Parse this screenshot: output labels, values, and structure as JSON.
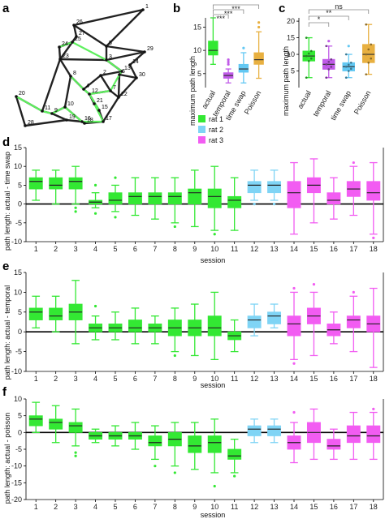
{
  "panel_labels": {
    "a": "a",
    "b": "b",
    "c": "c",
    "d": "d",
    "e": "e",
    "f": "f"
  },
  "colors": {
    "rat1": "#33e833",
    "rat2": "#7fd4f5",
    "rat3": "#f25cf2",
    "actual": "#33e833",
    "temporal": "#c05ae8",
    "time_swap": "#63c8f3",
    "poisson": "#e8b040",
    "network_edge": "#222222",
    "network_highlight": "#5ef05e"
  },
  "network": {
    "node_labels": [
      "1",
      "2",
      "3",
      "4",
      "5",
      "6",
      "7",
      "8",
      "9",
      "10",
      "11",
      "12",
      "13",
      "14",
      "15",
      "16",
      "17",
      "18",
      "19",
      "20",
      "21",
      "22",
      "23",
      "24",
      "25",
      "26",
      "27",
      "28",
      "29",
      "30"
    ]
  },
  "panel_b": {
    "ylabel": "maximum path length",
    "sig": [
      "***",
      "***",
      "***"
    ]
  },
  "panel_c": {
    "ylabel": "maximum path length",
    "sig": [
      "*",
      "**",
      "ns"
    ]
  },
  "legend": {
    "rat1": "rat 1",
    "rat2": "rat 2",
    "rat3": "rat 3"
  },
  "panel_d": {
    "ylabel": "path length: actual - time swap",
    "xlabel": "session"
  },
  "panel_e": {
    "ylabel": "path length: actual - temporal",
    "xlabel": "session"
  },
  "panel_f": {
    "ylabel": "path length: actual - poisson",
    "xlabel": "session"
  },
  "chart_data": [
    {
      "type": "box",
      "panel": "b",
      "categories": [
        "actual",
        "temporal",
        "time swap",
        "Poisson"
      ],
      "ylabel": "maximum path length",
      "ylim": [
        2,
        17
      ],
      "yticks": [
        5,
        10,
        15
      ],
      "boxes": [
        {
          "whislo": 7,
          "q1": 9,
          "med": 10,
          "q3": 12,
          "whishi": 17,
          "fliers": []
        },
        {
          "whislo": 3,
          "q1": 4,
          "med": 4.6,
          "q3": 5.2,
          "whishi": 6,
          "fliers": [
            7,
            7.5,
            8
          ]
        },
        {
          "whislo": 3,
          "q1": 5.3,
          "med": 6,
          "q3": 7,
          "whishi": 9.5,
          "fliers": [
            10.5
          ]
        },
        {
          "whislo": 4,
          "q1": 7,
          "med": 8,
          "q3": 9.5,
          "whishi": 14,
          "fliers": [
            15,
            16
          ]
        }
      ],
      "sig": [
        "***",
        "***",
        "***"
      ]
    },
    {
      "type": "box",
      "panel": "c",
      "categories": [
        "actual",
        "temporal",
        "time swap",
        "Poisson"
      ],
      "ylabel": "maximum path length",
      "ylim": [
        0,
        21
      ],
      "yticks": [
        5,
        10,
        15,
        20
      ],
      "boxes": [
        {
          "whislo": 3,
          "q1": 8,
          "med": 9.5,
          "q3": 11,
          "whishi": 15,
          "fliers": []
        },
        {
          "whislo": 3,
          "q1": 5.5,
          "med": 7,
          "q3": 8.5,
          "whishi": 12.5,
          "fliers": [
            14
          ]
        },
        {
          "whislo": 3,
          "q1": 5,
          "med": 6.3,
          "q3": 7.5,
          "whishi": 10,
          "fliers": [
            12.5
          ]
        },
        {
          "whislo": 4,
          "q1": 7.5,
          "med": 10,
          "q3": 13,
          "whishi": 19,
          "fliers": []
        }
      ],
      "sig": [
        "*",
        "**",
        "ns"
      ]
    },
    {
      "type": "box",
      "panel": "d",
      "xlabel": "session",
      "ylabel": "path length: actual - time swap",
      "categories": [
        "1",
        "2",
        "3",
        "4",
        "5",
        "6",
        "7",
        "8",
        "9",
        "10",
        "11",
        "12",
        "13",
        "14",
        "15",
        "16",
        "17",
        "18"
      ],
      "ylim": [
        -10,
        15
      ],
      "yticks": [
        -10,
        -5,
        0,
        5,
        10,
        15
      ],
      "rat": [
        1,
        1,
        1,
        1,
        1,
        1,
        1,
        1,
        1,
        1,
        1,
        2,
        2,
        3,
        3,
        3,
        3,
        3
      ],
      "boxes": [
        {
          "whislo": 1,
          "q1": 4,
          "med": 6,
          "q3": 7,
          "whishi": 9,
          "fliers": []
        },
        {
          "whislo": 0,
          "q1": 4,
          "med": 5,
          "q3": 7,
          "whishi": 9,
          "fliers": []
        },
        {
          "whislo": 0,
          "q1": 4,
          "med": 6,
          "q3": 7,
          "whishi": 10,
          "fliers": [
            -1,
            -2
          ]
        },
        {
          "whislo": -1,
          "q1": 0,
          "med": 0.5,
          "q3": 1,
          "whishi": 3,
          "fliers": [
            5,
            -2.5
          ]
        },
        {
          "whislo": -2,
          "q1": 0,
          "med": 1,
          "q3": 3,
          "whishi": 5,
          "fliers": [
            7,
            -3.5
          ]
        },
        {
          "whislo": -3,
          "q1": 0,
          "med": 2,
          "q3": 3,
          "whishi": 7,
          "fliers": []
        },
        {
          "whislo": -4,
          "q1": 0,
          "med": 2,
          "q3": 3,
          "whishi": 7,
          "fliers": []
        },
        {
          "whislo": -5,
          "q1": 0,
          "med": 2,
          "q3": 3,
          "whishi": 7,
          "fliers": [
            -6
          ]
        },
        {
          "whislo": -6,
          "q1": 0,
          "med": 3,
          "q3": 4,
          "whishi": 9,
          "fliers": []
        },
        {
          "whislo": -7,
          "q1": -1,
          "med": 2,
          "q3": 4,
          "whishi": 10,
          "fliers": [
            -8
          ]
        },
        {
          "whislo": -7,
          "q1": -1,
          "med": 1,
          "q3": 2,
          "whishi": 7,
          "fliers": []
        },
        {
          "whislo": 1,
          "q1": 3,
          "med": 5,
          "q3": 6,
          "whishi": 9,
          "fliers": [
            0
          ]
        },
        {
          "whislo": 1,
          "q1": 3,
          "med": 5,
          "q3": 6,
          "whishi": 9,
          "fliers": [
            0
          ]
        },
        {
          "whislo": -8,
          "q1": -1,
          "med": 3,
          "q3": 6,
          "whishi": 11,
          "fliers": []
        },
        {
          "whislo": -5,
          "q1": 3,
          "med": 5,
          "q3": 7,
          "whishi": 12,
          "fliers": []
        },
        {
          "whislo": -4,
          "q1": 0,
          "med": 1,
          "q3": 3,
          "whishi": 7,
          "fliers": []
        },
        {
          "whislo": -3,
          "q1": 2,
          "med": 4,
          "q3": 6,
          "whishi": 10,
          "fliers": [
            11
          ]
        },
        {
          "whislo": -8,
          "q1": 1,
          "med": 3,
          "q3": 6,
          "whishi": 11,
          "fliers": [
            -9
          ]
        }
      ]
    },
    {
      "type": "box",
      "panel": "e",
      "xlabel": "session",
      "ylabel": "path length: actual - temporal",
      "categories": [
        "1",
        "2",
        "3",
        "4",
        "5",
        "6",
        "7",
        "8",
        "9",
        "10",
        "11",
        "12",
        "13",
        "14",
        "15",
        "16",
        "17",
        "18"
      ],
      "ylim": [
        -10,
        15
      ],
      "yticks": [
        -10,
        -5,
        0,
        5,
        10,
        15
      ],
      "rat": [
        1,
        1,
        1,
        1,
        1,
        1,
        1,
        1,
        1,
        1,
        1,
        2,
        2,
        3,
        3,
        3,
        3,
        3
      ],
      "boxes": [
        {
          "whislo": 1,
          "q1": 3,
          "med": 5,
          "q3": 6,
          "whishi": 9,
          "fliers": []
        },
        {
          "whislo": 0,
          "q1": 3,
          "med": 4,
          "q3": 6,
          "whishi": 9,
          "fliers": []
        },
        {
          "whislo": -3,
          "q1": 3,
          "med": 5,
          "q3": 7,
          "whishi": 13,
          "fliers": []
        },
        {
          "whislo": -2,
          "q1": 0,
          "med": 1,
          "q3": 2,
          "whishi": 4,
          "fliers": [
            6.5
          ]
        },
        {
          "whislo": -2,
          "q1": 0,
          "med": 1,
          "q3": 2,
          "whishi": 5,
          "fliers": []
        },
        {
          "whislo": -3,
          "q1": 0,
          "med": 1,
          "q3": 3,
          "whishi": 6,
          "fliers": []
        },
        {
          "whislo": -3,
          "q1": 0,
          "med": 1,
          "q3": 2,
          "whishi": 4,
          "fliers": []
        },
        {
          "whislo": -5,
          "q1": -1,
          "med": 1,
          "q3": 3,
          "whishi": 6,
          "fliers": [
            -6
          ]
        },
        {
          "whislo": -6,
          "q1": -1,
          "med": 1,
          "q3": 3,
          "whishi": 7,
          "fliers": []
        },
        {
          "whislo": -7,
          "q1": -1,
          "med": 1,
          "q3": 4,
          "whishi": 10,
          "fliers": []
        },
        {
          "whislo": -5,
          "q1": -2,
          "med": -1,
          "q3": 0,
          "whishi": 3,
          "fliers": []
        },
        {
          "whislo": -1,
          "q1": 1,
          "med": 3,
          "q3": 4,
          "whishi": 7,
          "fliers": []
        },
        {
          "whislo": 1,
          "q1": 2,
          "med": 4,
          "q3": 5,
          "whishi": 7,
          "fliers": []
        },
        {
          "whislo": -7,
          "q1": -1,
          "med": 2,
          "q3": 4,
          "whishi": 10,
          "fliers": [
            11,
            -8
          ]
        },
        {
          "whislo": -6,
          "q1": 2,
          "med": 4,
          "q3": 6,
          "whishi": 10,
          "fliers": [
            12
          ]
        },
        {
          "whislo": -3,
          "q1": -1,
          "med": 0.5,
          "q3": 2,
          "whishi": 5,
          "fliers": []
        },
        {
          "whislo": -5,
          "q1": 1,
          "med": 3,
          "q3": 4,
          "whishi": 9,
          "fliers": [
            10
          ]
        },
        {
          "whislo": -9,
          "q1": 0,
          "med": 2,
          "q3": 4,
          "whishi": 11,
          "fliers": []
        }
      ]
    },
    {
      "type": "box",
      "panel": "f",
      "xlabel": "session",
      "ylabel": "path length: actual - poisson",
      "categories": [
        "1",
        "2",
        "3",
        "4",
        "5",
        "6",
        "7",
        "8",
        "9",
        "10",
        "11",
        "12",
        "13",
        "14",
        "15",
        "16",
        "17",
        "18"
      ],
      "ylim": [
        -20,
        10
      ],
      "yticks": [
        -20,
        -15,
        -10,
        -5,
        0,
        5,
        10
      ],
      "rat": [
        1,
        1,
        1,
        1,
        1,
        1,
        1,
        1,
        1,
        1,
        1,
        2,
        2,
        3,
        3,
        3,
        3,
        3
      ],
      "boxes": [
        {
          "whislo": 0,
          "q1": 2,
          "med": 4,
          "q3": 5,
          "whishi": 9,
          "fliers": []
        },
        {
          "whislo": -3,
          "q1": 1,
          "med": 3,
          "q3": 4,
          "whishi": 8,
          "fliers": []
        },
        {
          "whislo": -4,
          "q1": 0,
          "med": 2,
          "q3": 3,
          "whishi": 7,
          "fliers": [
            -6,
            -7
          ]
        },
        {
          "whislo": -3,
          "q1": -2,
          "med": -1,
          "q3": 0,
          "whishi": 1,
          "fliers": []
        },
        {
          "whislo": -4,
          "q1": -2,
          "med": -1,
          "q3": 0,
          "whishi": 2,
          "fliers": []
        },
        {
          "whislo": -5,
          "q1": -2,
          "med": -1,
          "q3": 0,
          "whishi": 3,
          "fliers": []
        },
        {
          "whislo": -8,
          "q1": -4,
          "med": -3,
          "q3": -1,
          "whishi": 2,
          "fliers": [
            -10
          ]
        },
        {
          "whislo": -10,
          "q1": -4,
          "med": -2,
          "q3": 0,
          "whishi": 3,
          "fliers": [
            -12
          ]
        },
        {
          "whislo": -11,
          "q1": -6,
          "med": -4,
          "q3": -1,
          "whishi": 3,
          "fliers": []
        },
        {
          "whislo": -12,
          "q1": -6,
          "med": -3,
          "q3": -1,
          "whishi": 4,
          "fliers": [
            -16
          ]
        },
        {
          "whislo": -12,
          "q1": -8,
          "med": -7,
          "q3": -5,
          "whishi": -2,
          "fliers": [
            -13
          ]
        },
        {
          "whislo": -3,
          "q1": -1,
          "med": 1,
          "q3": 2,
          "whishi": 4,
          "fliers": []
        },
        {
          "whislo": -3,
          "q1": -1,
          "med": 1,
          "q3": 2,
          "whishi": 4,
          "fliers": []
        },
        {
          "whislo": -9,
          "q1": -5,
          "med": -3,
          "q3": -1,
          "whishi": 3,
          "fliers": [
            6
          ]
        },
        {
          "whislo": -8,
          "q1": -3,
          "med": 0,
          "q3": 3,
          "whishi": 7,
          "fliers": []
        },
        {
          "whislo": -8,
          "q1": -5,
          "med": -4,
          "q3": -2,
          "whishi": 1,
          "fliers": []
        },
        {
          "whislo": -8,
          "q1": -3,
          "med": -1,
          "q3": 2,
          "whishi": 6,
          "fliers": []
        },
        {
          "whislo": -8,
          "q1": -3,
          "med": -1,
          "q3": 2,
          "whishi": 6,
          "fliers": [
            7
          ]
        }
      ]
    }
  ]
}
